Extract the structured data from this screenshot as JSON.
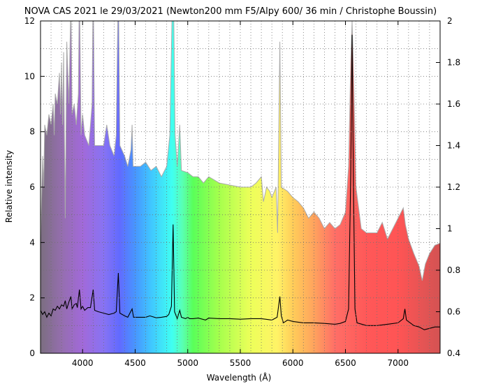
{
  "chart_data": {
    "type": "line",
    "title": "NOVA CAS 2021 le 29/03/2021 (Newton200 mm F5/Alpy 600/ 36 min / Christophe Boussin)",
    "xlabel": "Wavelength (Å)",
    "ylabel": "Relative intensity",
    "xlim": [
      3600,
      7400
    ],
    "ylim": [
      0,
      12
    ],
    "y2lim": [
      0.4,
      2
    ],
    "xticks": [
      4000,
      4500,
      5000,
      5500,
      6000,
      6500,
      7000
    ],
    "yticks": [
      0,
      2,
      4,
      6,
      8,
      10,
      12
    ],
    "y2ticks": [
      0.4,
      0.6,
      0.8,
      1,
      1.2,
      1.4,
      1.6,
      1.8,
      2
    ],
    "grid": true,
    "series": [
      {
        "role": "spectrum (left axis)",
        "color": "#000000",
        "points": [
          [
            3600,
            1.55
          ],
          [
            3620,
            1.4
          ],
          [
            3640,
            1.5
          ],
          [
            3660,
            1.3
          ],
          [
            3680,
            1.45
          ],
          [
            3700,
            1.35
          ],
          [
            3720,
            1.6
          ],
          [
            3740,
            1.55
          ],
          [
            3760,
            1.7
          ],
          [
            3780,
            1.6
          ],
          [
            3800,
            1.75
          ],
          [
            3820,
            1.7
          ],
          [
            3835,
            1.9
          ],
          [
            3850,
            1.6
          ],
          [
            3870,
            1.85
          ],
          [
            3889,
            2.05
          ],
          [
            3900,
            1.6
          ],
          [
            3920,
            1.75
          ],
          [
            3940,
            1.8
          ],
          [
            3950,
            1.65
          ],
          [
            3970,
            2.3
          ],
          [
            3985,
            1.6
          ],
          [
            4000,
            1.7
          ],
          [
            4020,
            1.55
          ],
          [
            4050,
            1.65
          ],
          [
            4075,
            1.65
          ],
          [
            4101,
            2.3
          ],
          [
            4115,
            1.55
          ],
          [
            4150,
            1.5
          ],
          [
            4200,
            1.45
          ],
          [
            4250,
            1.4
          ],
          [
            4300,
            1.45
          ],
          [
            4320,
            1.5
          ],
          [
            4340,
            2.9
          ],
          [
            4355,
            1.45
          ],
          [
            4400,
            1.35
          ],
          [
            4430,
            1.3
          ],
          [
            4471,
            1.6
          ],
          [
            4485,
            1.3
          ],
          [
            4550,
            1.3
          ],
          [
            4600,
            1.3
          ],
          [
            4640,
            1.35
          ],
          [
            4700,
            1.28
          ],
          [
            4750,
            1.3
          ],
          [
            4800,
            1.33
          ],
          [
            4820,
            1.4
          ],
          [
            4845,
            1.7
          ],
          [
            4861,
            4.65
          ],
          [
            4875,
            1.5
          ],
          [
            4900,
            1.25
          ],
          [
            4924,
            1.55
          ],
          [
            4940,
            1.3
          ],
          [
            4980,
            1.25
          ],
          [
            5000,
            1.3
          ],
          [
            5018,
            1.25
          ],
          [
            5050,
            1.25
          ],
          [
            5100,
            1.27
          ],
          [
            5169,
            1.2
          ],
          [
            5200,
            1.27
          ],
          [
            5300,
            1.25
          ],
          [
            5400,
            1.25
          ],
          [
            5500,
            1.23
          ],
          [
            5600,
            1.25
          ],
          [
            5700,
            1.25
          ],
          [
            5800,
            1.2
          ],
          [
            5850,
            1.3
          ],
          [
            5876,
            2.05
          ],
          [
            5890,
            1.35
          ],
          [
            5910,
            1.1
          ],
          [
            5950,
            1.2
          ],
          [
            6000,
            1.15
          ],
          [
            6100,
            1.1
          ],
          [
            6200,
            1.1
          ],
          [
            6300,
            1.08
          ],
          [
            6400,
            1.05
          ],
          [
            6450,
            1.08
          ],
          [
            6500,
            1.15
          ],
          [
            6530,
            1.6
          ],
          [
            6550,
            6.5
          ],
          [
            6563,
            11.5
          ],
          [
            6575,
            6.5
          ],
          [
            6590,
            1.6
          ],
          [
            6610,
            1.1
          ],
          [
            6700,
            1.0
          ],
          [
            6800,
            1.0
          ],
          [
            6900,
            1.05
          ],
          [
            7000,
            1.1
          ],
          [
            7050,
            1.25
          ],
          [
            7065,
            1.6
          ],
          [
            7080,
            1.2
          ],
          [
            7150,
            1.0
          ],
          [
            7200,
            0.95
          ],
          [
            7250,
            0.85
          ],
          [
            7300,
            0.9
          ],
          [
            7350,
            0.95
          ],
          [
            7400,
            0.95
          ]
        ]
      },
      {
        "role": "spectrum (right axis)",
        "color": "#aaaaaa",
        "points": [
          [
            3600,
            0.95
          ],
          [
            3605,
            1.05
          ],
          [
            3620,
            1.35
          ],
          [
            3630,
            1.2
          ],
          [
            3640,
            1.5
          ],
          [
            3660,
            1.45
          ],
          [
            3680,
            1.55
          ],
          [
            3700,
            1.5
          ],
          [
            3720,
            1.6
          ],
          [
            3730,
            1.45
          ],
          [
            3740,
            1.65
          ],
          [
            3760,
            1.6
          ],
          [
            3780,
            1.75
          ],
          [
            3790,
            1.55
          ],
          [
            3800,
            1.8
          ],
          [
            3810,
            1.5
          ],
          [
            3820,
            1.85
          ],
          [
            3835,
            1.05
          ],
          [
            3850,
            1.9
          ],
          [
            3870,
            1.6
          ],
          [
            3889,
            2.1
          ],
          [
            3900,
            1.55
          ],
          [
            3920,
            1.6
          ],
          [
            3940,
            1.5
          ],
          [
            3960,
            1.65
          ],
          [
            3970,
            2.2
          ],
          [
            3985,
            1.45
          ],
          [
            4000,
            1.55
          ],
          [
            4020,
            1.45
          ],
          [
            4060,
            1.4
          ],
          [
            4090,
            1.6
          ],
          [
            4101,
            2.2
          ],
          [
            4115,
            1.4
          ],
          [
            4150,
            1.4
          ],
          [
            4200,
            1.4
          ],
          [
            4230,
            1.5
          ],
          [
            4260,
            1.4
          ],
          [
            4300,
            1.35
          ],
          [
            4320,
            1.45
          ],
          [
            4340,
            2.2
          ],
          [
            4355,
            1.4
          ],
          [
            4400,
            1.35
          ],
          [
            4430,
            1.3
          ],
          [
            4460,
            1.38
          ],
          [
            4471,
            1.5
          ],
          [
            4480,
            1.3
          ],
          [
            4550,
            1.3
          ],
          [
            4600,
            1.32
          ],
          [
            4650,
            1.28
          ],
          [
            4700,
            1.3
          ],
          [
            4750,
            1.25
          ],
          [
            4800,
            1.3
          ],
          [
            4830,
            1.45
          ],
          [
            4861,
            2.3
          ],
          [
            4880,
            1.45
          ],
          [
            4900,
            1.3
          ],
          [
            4924,
            1.5
          ],
          [
            4940,
            1.28
          ],
          [
            5000,
            1.27
          ],
          [
            5050,
            1.25
          ],
          [
            5100,
            1.25
          ],
          [
            5150,
            1.22
          ],
          [
            5200,
            1.25
          ],
          [
            5300,
            1.22
          ],
          [
            5400,
            1.21
          ],
          [
            5500,
            1.2
          ],
          [
            5600,
            1.2
          ],
          [
            5650,
            1.22
          ],
          [
            5700,
            1.25
          ],
          [
            5720,
            1.13
          ],
          [
            5750,
            1.2
          ],
          [
            5780,
            1.18
          ],
          [
            5800,
            1.15
          ],
          [
            5840,
            1.2
          ],
          [
            5855,
            0.98
          ],
          [
            5876,
            1.9
          ],
          [
            5890,
            1.2
          ],
          [
            5950,
            1.18
          ],
          [
            6000,
            1.15
          ],
          [
            6050,
            1.13
          ],
          [
            6100,
            1.1
          ],
          [
            6150,
            1.05
          ],
          [
            6200,
            1.08
          ],
          [
            6250,
            1.05
          ],
          [
            6300,
            1.0
          ],
          [
            6350,
            1.03
          ],
          [
            6400,
            1.0
          ],
          [
            6450,
            1.02
          ],
          [
            6500,
            1.08
          ],
          [
            6530,
            1.3
          ],
          [
            6550,
            1.8
          ],
          [
            6563,
            2.0
          ],
          [
            6575,
            1.8
          ],
          [
            6600,
            1.2
          ],
          [
            6650,
            1.0
          ],
          [
            6700,
            0.98
          ],
          [
            6800,
            0.98
          ],
          [
            6850,
            1.03
          ],
          [
            6900,
            0.95
          ],
          [
            6950,
            1.0
          ],
          [
            7000,
            1.05
          ],
          [
            7050,
            1.1
          ],
          [
            7070,
            1.02
          ],
          [
            7100,
            0.95
          ],
          [
            7150,
            0.88
          ],
          [
            7200,
            0.82
          ],
          [
            7230,
            0.75
          ],
          [
            7260,
            0.83
          ],
          [
            7300,
            0.88
          ],
          [
            7350,
            0.92
          ],
          [
            7400,
            0.93
          ]
        ]
      }
    ]
  }
}
